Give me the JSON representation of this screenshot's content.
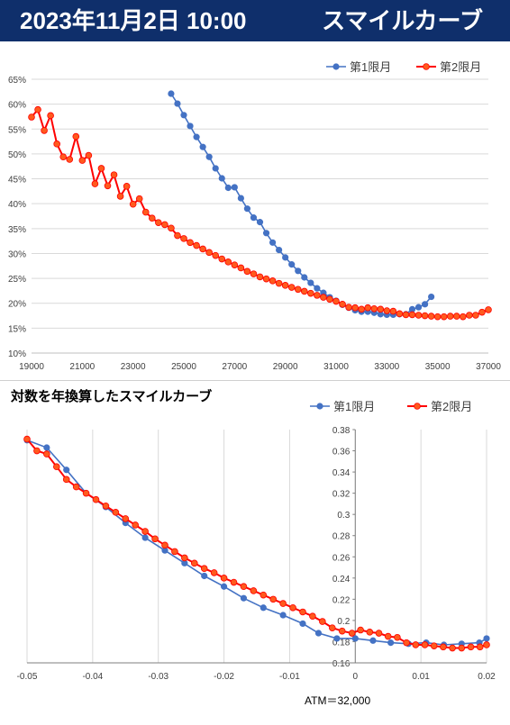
{
  "header": {
    "date": "2023年11月2日 10:00",
    "title": "スマイルカーブ"
  },
  "colors": {
    "header_bg": "#0f2f6b",
    "series1": "#4472c4",
    "series2": "#ff0000",
    "series2_fill": "#ff5a1e",
    "grid": "#d9d9d9"
  },
  "chart_data": [
    {
      "type": "line",
      "title": "",
      "xlabel": "",
      "ylabel": "",
      "xlim": [
        19000,
        37000
      ],
      "ylim": [
        0.1,
        0.65
      ],
      "x_ticks": [
        19000,
        21000,
        23000,
        25000,
        27000,
        29000,
        31000,
        33000,
        35000,
        37000
      ],
      "y_ticks": [
        0.1,
        0.15,
        0.2,
        0.25,
        0.3,
        0.35,
        0.4,
        0.45,
        0.5,
        0.55,
        0.6,
        0.65
      ],
      "x_tick_labels": [
        "19000",
        "21000",
        "23000",
        "25000",
        "27000",
        "29000",
        "31000",
        "33000",
        "35000",
        "37000"
      ],
      "y_tick_labels": [
        "10%",
        "15%",
        "20%",
        "25%",
        "30%",
        "35%",
        "40%",
        "45%",
        "50%",
        "55%",
        "60%",
        "65%"
      ],
      "grid": "horizontal",
      "legend_position": "top-right",
      "series": [
        {
          "name": "第1限月",
          "x": [
            24500,
            24750,
            25000,
            25250,
            25500,
            25750,
            26000,
            26250,
            26500,
            26750,
            27000,
            27250,
            27500,
            27750,
            28000,
            28250,
            28500,
            28750,
            29000,
            29250,
            29500,
            29750,
            30000,
            30250,
            30500,
            30750,
            31000,
            31250,
            31500,
            31750,
            32000,
            32250,
            32500,
            32750,
            33000,
            33250,
            33500,
            33750,
            34000,
            34250,
            34500,
            34750
          ],
          "y": [
            0.621,
            0.601,
            0.578,
            0.556,
            0.534,
            0.514,
            0.494,
            0.471,
            0.451,
            0.432,
            0.433,
            0.411,
            0.39,
            0.372,
            0.363,
            0.341,
            0.322,
            0.307,
            0.292,
            0.278,
            0.265,
            0.252,
            0.241,
            0.23,
            0.221,
            0.212,
            0.205,
            0.197,
            0.191,
            0.186,
            0.183,
            0.183,
            0.181,
            0.178,
            0.177,
            0.177,
            0.178,
            0.178,
            0.188,
            0.192,
            0.198,
            0.213
          ]
        },
        {
          "name": "第2限月",
          "x": [
            19000,
            19250,
            19500,
            19750,
            20000,
            20250,
            20500,
            20750,
            21000,
            21250,
            21500,
            21750,
            22000,
            22250,
            22500,
            22750,
            23000,
            23250,
            23500,
            23750,
            24000,
            24250,
            24500,
            24750,
            25000,
            25250,
            25500,
            25750,
            26000,
            26250,
            26500,
            26750,
            27000,
            27250,
            27500,
            27750,
            28000,
            28250,
            28500,
            28750,
            29000,
            29250,
            29500,
            29750,
            30000,
            30250,
            30500,
            30750,
            31000,
            31250,
            31500,
            31750,
            32000,
            32250,
            32500,
            32750,
            33000,
            33250,
            33500,
            33750,
            34000,
            34250,
            34500,
            34750,
            35000,
            35250,
            35500,
            35750,
            36000,
            36250,
            36500,
            36750,
            37000
          ],
          "y": [
            0.574,
            0.589,
            0.547,
            0.577,
            0.52,
            0.494,
            0.489,
            0.535,
            0.487,
            0.497,
            0.44,
            0.471,
            0.436,
            0.458,
            0.415,
            0.435,
            0.399,
            0.41,
            0.383,
            0.371,
            0.362,
            0.358,
            0.351,
            0.336,
            0.33,
            0.322,
            0.316,
            0.309,
            0.302,
            0.296,
            0.289,
            0.283,
            0.277,
            0.271,
            0.264,
            0.259,
            0.253,
            0.249,
            0.245,
            0.24,
            0.236,
            0.232,
            0.228,
            0.224,
            0.22,
            0.216,
            0.212,
            0.208,
            0.204,
            0.198,
            0.192,
            0.191,
            0.188,
            0.191,
            0.189,
            0.188,
            0.185,
            0.184,
            0.179,
            0.177,
            0.177,
            0.176,
            0.175,
            0.174,
            0.173,
            0.173,
            0.174,
            0.174,
            0.173,
            0.176,
            0.176,
            0.182,
            0.187
          ]
        }
      ]
    },
    {
      "type": "line",
      "title": "対数を年換算したスマイルカーブ",
      "xlabel": "",
      "ylabel": "",
      "xlim": [
        -0.05,
        0.02
      ],
      "ylim": [
        0.16,
        0.38
      ],
      "x_ticks": [
        -0.05,
        -0.04,
        -0.03,
        -0.02,
        -0.01,
        0,
        0.01,
        0.02
      ],
      "y_ticks": [
        0.16,
        0.18,
        0.2,
        0.22,
        0.24,
        0.26,
        0.28,
        0.3,
        0.32,
        0.34,
        0.36,
        0.38
      ],
      "x_tick_labels": [
        "-0.05",
        "-0.04",
        "-0.03",
        "-0.02",
        "-0.01",
        "0",
        "0.01",
        "0.02"
      ],
      "y_tick_labels": [
        "0.16",
        "0.18",
        "0.2",
        "0.22",
        "0.24",
        "0.26",
        "0.28",
        "0.3",
        "0.32",
        "0.34",
        "0.36",
        "0.38"
      ],
      "grid": "vertical",
      "legend_position": "top-right",
      "annotation": "ATM＝32,000",
      "series": [
        {
          "name": "第1限月",
          "x": [
            -0.05,
            -0.047,
            -0.044,
            -0.041,
            -0.038,
            -0.035,
            -0.032,
            -0.029,
            -0.026,
            -0.023,
            -0.02,
            -0.017,
            -0.014,
            -0.011,
            -0.008,
            -0.0056,
            -0.0028,
            0,
            0.0027,
            0.0054,
            0.0081,
            0.0108,
            0.0135,
            0.0162,
            0.0189,
            0.02
          ],
          "y": [
            0.37,
            0.363,
            0.342,
            0.32,
            0.307,
            0.292,
            0.278,
            0.266,
            0.254,
            0.242,
            0.232,
            0.221,
            0.212,
            0.205,
            0.197,
            0.188,
            0.183,
            0.183,
            0.181,
            0.179,
            0.178,
            0.179,
            0.177,
            0.178,
            0.179,
            0.183
          ]
        },
        {
          "name": "第2限月",
          "x": [
            -0.05,
            -0.0485,
            -0.047,
            -0.0455,
            -0.044,
            -0.0425,
            -0.041,
            -0.0395,
            -0.038,
            -0.0365,
            -0.035,
            -0.0335,
            -0.032,
            -0.0305,
            -0.029,
            -0.0275,
            -0.026,
            -0.0245,
            -0.023,
            -0.0215,
            -0.02,
            -0.0185,
            -0.017,
            -0.0155,
            -0.014,
            -0.0125,
            -0.011,
            -0.0095,
            -0.008,
            -0.0065,
            -0.005,
            -0.0035,
            -0.002,
            -0.0005,
            0.0008,
            0.0022,
            0.0036,
            0.005,
            0.0064,
            0.0078,
            0.0092,
            0.0106,
            0.012,
            0.0134,
            0.0148,
            0.0162,
            0.0176,
            0.019,
            0.02
          ],
          "y": [
            0.371,
            0.36,
            0.357,
            0.345,
            0.333,
            0.326,
            0.32,
            0.314,
            0.308,
            0.302,
            0.296,
            0.29,
            0.284,
            0.277,
            0.271,
            0.265,
            0.259,
            0.254,
            0.249,
            0.245,
            0.24,
            0.236,
            0.232,
            0.228,
            0.224,
            0.22,
            0.216,
            0.212,
            0.208,
            0.204,
            0.199,
            0.193,
            0.19,
            0.188,
            0.191,
            0.189,
            0.188,
            0.185,
            0.184,
            0.179,
            0.177,
            0.177,
            0.176,
            0.175,
            0.174,
            0.174,
            0.175,
            0.175,
            0.177
          ]
        }
      ]
    }
  ]
}
